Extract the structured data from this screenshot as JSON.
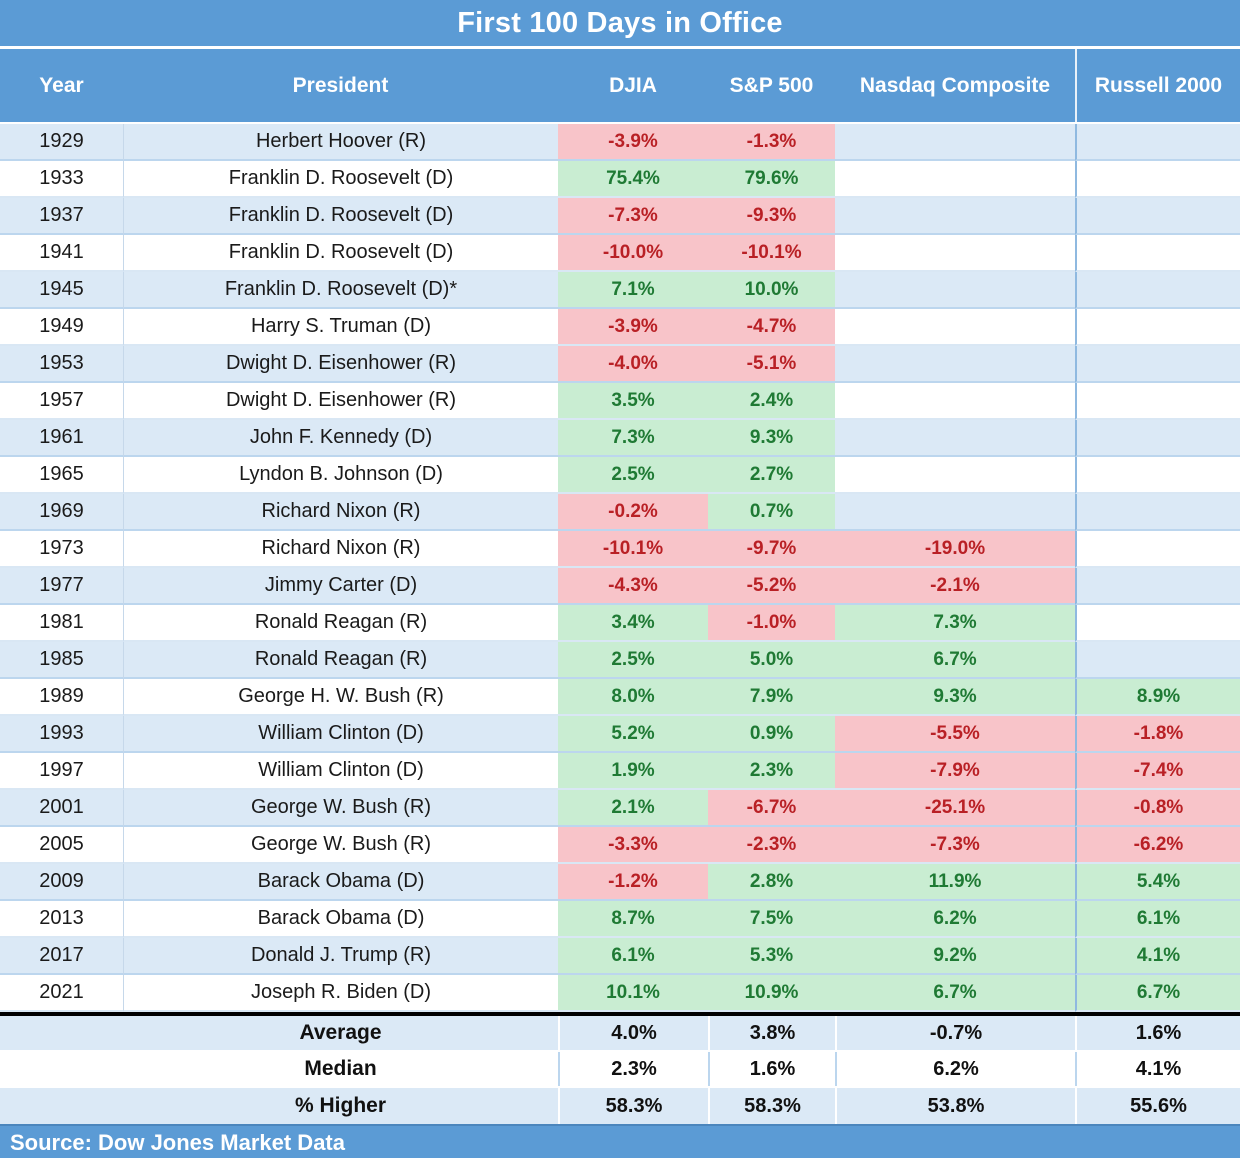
{
  "title": "First 100 Days in Office",
  "source": "Source: Dow Jones Market Data",
  "colors": {
    "header_blue": "#5b9bd5",
    "row_stripe_blue": "#dbe9f6",
    "positive_bg": "#c9edd2",
    "negative_bg": "#f8c4c9",
    "positive_text": "#1f7a34",
    "negative_text": "#b92025"
  },
  "chart_data": {
    "type": "table",
    "title": "First 100 Days in Office",
    "columns": [
      "Year",
      "President",
      "DJIA",
      "S&P 500",
      "Nasdaq Composite",
      "Russell 2000"
    ],
    "rows": [
      {
        "year": "1929",
        "president": "Herbert Hoover (R)",
        "values": [
          {
            "v": "-3.9%",
            "sign": "neg"
          },
          {
            "v": "-1.3%",
            "sign": "neg"
          },
          null,
          null
        ]
      },
      {
        "year": "1933",
        "president": "Franklin D. Roosevelt (D)",
        "values": [
          {
            "v": "75.4%",
            "sign": "pos"
          },
          {
            "v": "79.6%",
            "sign": "pos"
          },
          null,
          null
        ]
      },
      {
        "year": "1937",
        "president": "Franklin D. Roosevelt (D)",
        "values": [
          {
            "v": "-7.3%",
            "sign": "neg"
          },
          {
            "v": "-9.3%",
            "sign": "neg"
          },
          null,
          null
        ]
      },
      {
        "year": "1941",
        "president": "Franklin D. Roosevelt (D)",
        "values": [
          {
            "v": "-10.0%",
            "sign": "neg"
          },
          {
            "v": "-10.1%",
            "sign": "neg"
          },
          null,
          null
        ]
      },
      {
        "year": "1945",
        "president": "Franklin D. Roosevelt (D)*",
        "values": [
          {
            "v": "7.1%",
            "sign": "pos"
          },
          {
            "v": "10.0%",
            "sign": "pos"
          },
          null,
          null
        ]
      },
      {
        "year": "1949",
        "president": "Harry S. Truman (D)",
        "values": [
          {
            "v": "-3.9%",
            "sign": "neg"
          },
          {
            "v": "-4.7%",
            "sign": "neg"
          },
          null,
          null
        ]
      },
      {
        "year": "1953",
        "president": "Dwight D. Eisenhower (R)",
        "values": [
          {
            "v": "-4.0%",
            "sign": "neg"
          },
          {
            "v": "-5.1%",
            "sign": "neg"
          },
          null,
          null
        ]
      },
      {
        "year": "1957",
        "president": "Dwight D. Eisenhower (R)",
        "values": [
          {
            "v": "3.5%",
            "sign": "pos"
          },
          {
            "v": "2.4%",
            "sign": "pos"
          },
          null,
          null
        ]
      },
      {
        "year": "1961",
        "president": "John F. Kennedy (D)",
        "values": [
          {
            "v": "7.3%",
            "sign": "pos"
          },
          {
            "v": "9.3%",
            "sign": "pos"
          },
          null,
          null
        ]
      },
      {
        "year": "1965",
        "president": "Lyndon B. Johnson (D)",
        "values": [
          {
            "v": "2.5%",
            "sign": "pos"
          },
          {
            "v": "2.7%",
            "sign": "pos"
          },
          null,
          null
        ]
      },
      {
        "year": "1969",
        "president": "Richard Nixon (R)",
        "values": [
          {
            "v": "-0.2%",
            "sign": "neg"
          },
          {
            "v": "0.7%",
            "sign": "pos"
          },
          null,
          null
        ]
      },
      {
        "year": "1973",
        "president": "Richard Nixon (R)",
        "values": [
          {
            "v": "-10.1%",
            "sign": "neg"
          },
          {
            "v": "-9.7%",
            "sign": "neg"
          },
          {
            "v": "-19.0%",
            "sign": "neg"
          },
          null
        ]
      },
      {
        "year": "1977",
        "president": "Jimmy Carter (D)",
        "values": [
          {
            "v": "-4.3%",
            "sign": "neg"
          },
          {
            "v": "-5.2%",
            "sign": "neg"
          },
          {
            "v": "-2.1%",
            "sign": "neg"
          },
          null
        ]
      },
      {
        "year": "1981",
        "president": "Ronald Reagan (R)",
        "values": [
          {
            "v": "3.4%",
            "sign": "pos"
          },
          {
            "v": "-1.0%",
            "sign": "neg"
          },
          {
            "v": "7.3%",
            "sign": "pos"
          },
          null
        ]
      },
      {
        "year": "1985",
        "president": "Ronald Reagan (R)",
        "values": [
          {
            "v": "2.5%",
            "sign": "pos"
          },
          {
            "v": "5.0%",
            "sign": "pos"
          },
          {
            "v": "6.7%",
            "sign": "pos"
          },
          null
        ]
      },
      {
        "year": "1989",
        "president": "George H. W. Bush (R)",
        "values": [
          {
            "v": "8.0%",
            "sign": "pos"
          },
          {
            "v": "7.9%",
            "sign": "pos"
          },
          {
            "v": "9.3%",
            "sign": "pos"
          },
          {
            "v": "8.9%",
            "sign": "pos"
          }
        ]
      },
      {
        "year": "1993",
        "president": "William Clinton (D)",
        "values": [
          {
            "v": "5.2%",
            "sign": "pos"
          },
          {
            "v": "0.9%",
            "sign": "pos"
          },
          {
            "v": "-5.5%",
            "sign": "neg"
          },
          {
            "v": "-1.8%",
            "sign": "neg"
          }
        ]
      },
      {
        "year": "1997",
        "president": "William Clinton (D)",
        "values": [
          {
            "v": "1.9%",
            "sign": "pos"
          },
          {
            "v": "2.3%",
            "sign": "pos"
          },
          {
            "v": "-7.9%",
            "sign": "neg"
          },
          {
            "v": "-7.4%",
            "sign": "neg"
          }
        ]
      },
      {
        "year": "2001",
        "president": "George W. Bush (R)",
        "values": [
          {
            "v": "2.1%",
            "sign": "pos"
          },
          {
            "v": "-6.7%",
            "sign": "neg"
          },
          {
            "v": "-25.1%",
            "sign": "neg"
          },
          {
            "v": "-0.8%",
            "sign": "neg"
          }
        ]
      },
      {
        "year": "2005",
        "president": "George W. Bush (R)",
        "values": [
          {
            "v": "-3.3%",
            "sign": "neg"
          },
          {
            "v": "-2.3%",
            "sign": "neg"
          },
          {
            "v": "-7.3%",
            "sign": "neg"
          },
          {
            "v": "-6.2%",
            "sign": "neg"
          }
        ]
      },
      {
        "year": "2009",
        "president": "Barack Obama (D)",
        "values": [
          {
            "v": "-1.2%",
            "sign": "neg"
          },
          {
            "v": "2.8%",
            "sign": "pos"
          },
          {
            "v": "11.9%",
            "sign": "pos"
          },
          {
            "v": "5.4%",
            "sign": "pos"
          }
        ]
      },
      {
        "year": "2013",
        "president": "Barack Obama (D)",
        "values": [
          {
            "v": "8.7%",
            "sign": "pos"
          },
          {
            "v": "7.5%",
            "sign": "pos"
          },
          {
            "v": "6.2%",
            "sign": "pos"
          },
          {
            "v": "6.1%",
            "sign": "pos"
          }
        ]
      },
      {
        "year": "2017",
        "president": "Donald J. Trump (R)",
        "values": [
          {
            "v": "6.1%",
            "sign": "pos"
          },
          {
            "v": "5.3%",
            "sign": "pos"
          },
          {
            "v": "9.2%",
            "sign": "pos"
          },
          {
            "v": "4.1%",
            "sign": "pos"
          }
        ]
      },
      {
        "year": "2021",
        "president": "Joseph R. Biden (D)",
        "values": [
          {
            "v": "10.1%",
            "sign": "pos"
          },
          {
            "v": "10.9%",
            "sign": "pos"
          },
          {
            "v": "6.7%",
            "sign": "pos"
          },
          {
            "v": "6.7%",
            "sign": "pos"
          }
        ]
      }
    ],
    "summary": [
      {
        "label": "Average",
        "values": [
          "4.0%",
          "3.8%",
          "-0.7%",
          "1.6%"
        ]
      },
      {
        "label": "Median",
        "values": [
          "2.3%",
          "1.6%",
          "6.2%",
          "4.1%"
        ]
      },
      {
        "label": "% Higher",
        "values": [
          "58.3%",
          "58.3%",
          "53.8%",
          "55.6%"
        ]
      }
    ],
    "source": "Source: Dow Jones Market Data"
  }
}
